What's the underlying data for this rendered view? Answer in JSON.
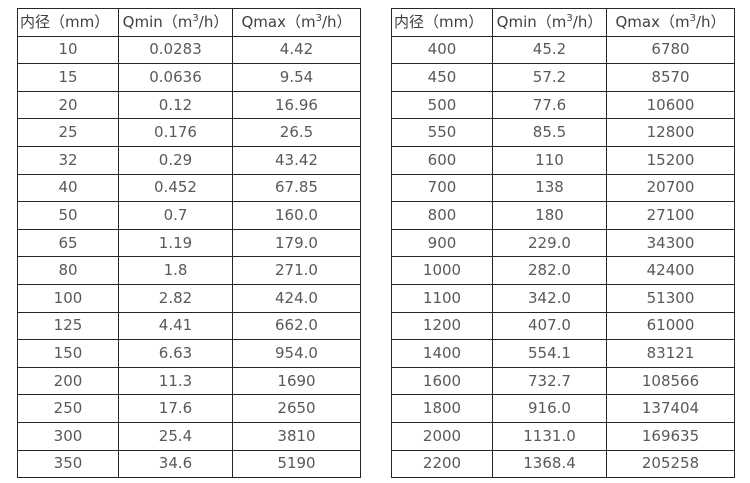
{
  "colors": {
    "background": "#ffffff",
    "border": "#262626",
    "header_text": "#404040",
    "cell_text": "#595959"
  },
  "tables": [
    {
      "headers": [
        "内径（mm）",
        "Qmin（m³/h）",
        "Qmax（m³/h）"
      ],
      "rows": [
        [
          "10",
          "0.0283",
          "4.42"
        ],
        [
          "15",
          "0.0636",
          "9.54"
        ],
        [
          "20",
          "0.12",
          "16.96"
        ],
        [
          "25",
          "0.176",
          "26.5"
        ],
        [
          "32",
          "0.29",
          "43.42"
        ],
        [
          "40",
          "0.452",
          "67.85"
        ],
        [
          "50",
          "0.7",
          "160.0"
        ],
        [
          "65",
          "1.19",
          "179.0"
        ],
        [
          "80",
          "1.8",
          "271.0"
        ],
        [
          "100",
          "2.82",
          "424.0"
        ],
        [
          "125",
          "4.41",
          "662.0"
        ],
        [
          "150",
          "6.63",
          "954.0"
        ],
        [
          "200",
          "11.3",
          "1690"
        ],
        [
          "250",
          "17.6",
          "2650"
        ],
        [
          "300",
          "25.4",
          "3810"
        ],
        [
          "350",
          "34.6",
          "5190"
        ]
      ]
    },
    {
      "headers": [
        "内径（mm）",
        "Qmin（m³/h）",
        "Qmax（m³/h）"
      ],
      "rows": [
        [
          "400",
          "45.2",
          "6780"
        ],
        [
          "450",
          "57.2",
          "8570"
        ],
        [
          "500",
          "77.6",
          "10600"
        ],
        [
          "550",
          "85.5",
          "12800"
        ],
        [
          "600",
          "110",
          "15200"
        ],
        [
          "700",
          "138",
          "20700"
        ],
        [
          "800",
          "180",
          "27100"
        ],
        [
          "900",
          "229.0",
          "34300"
        ],
        [
          "1000",
          "282.0",
          "42400"
        ],
        [
          "1100",
          "342.0",
          "51300"
        ],
        [
          "1200",
          "407.0",
          "61000"
        ],
        [
          "1400",
          "554.1",
          "83121"
        ],
        [
          "1600",
          "732.7",
          "108566"
        ],
        [
          "1800",
          "916.0",
          "137404"
        ],
        [
          "2000",
          "1131.0",
          "169635"
        ],
        [
          "2200",
          "1368.4",
          "205258"
        ]
      ]
    }
  ]
}
